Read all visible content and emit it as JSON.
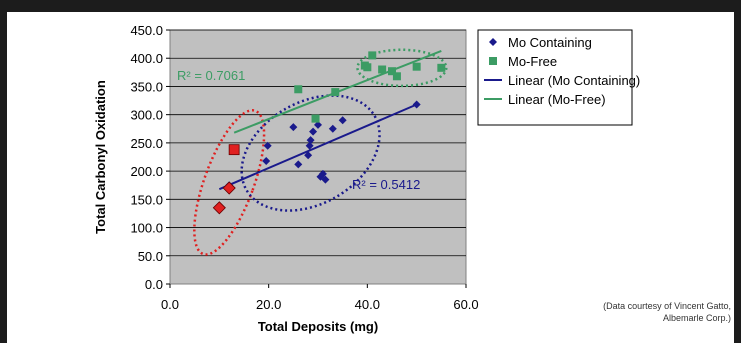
{
  "chart_data": {
    "type": "scatter",
    "xlabel": "Total Deposits (mg)",
    "ylabel": "Total Carbonyl Oxidation",
    "xlim": [
      0,
      60
    ],
    "ylim": [
      0,
      450
    ],
    "x_ticks": [
      "0.0",
      "20.0",
      "40.0",
      "60.0"
    ],
    "y_ticks": [
      "0.0",
      "50.0",
      "100.0",
      "150.0",
      "200.0",
      "250.0",
      "300.0",
      "350.0",
      "400.0",
      "450.0"
    ],
    "grid": true,
    "legend_position": "right",
    "series": [
      {
        "name": "Mo Containing",
        "marker": "diamond",
        "color": "#1a1a8c",
        "points": [
          [
            12,
            175
          ],
          [
            19.5,
            218
          ],
          [
            19.8,
            245
          ],
          [
            25,
            278
          ],
          [
            26,
            212
          ],
          [
            28,
            228
          ],
          [
            28.3,
            245
          ],
          [
            28.5,
            255
          ],
          [
            29,
            270
          ],
          [
            30,
            282
          ],
          [
            30.5,
            190
          ],
          [
            31,
            195
          ],
          [
            31.5,
            185
          ],
          [
            33,
            275
          ],
          [
            35,
            290
          ],
          [
            50,
            318
          ]
        ]
      },
      {
        "name": "Mo-Free",
        "marker": "square",
        "color": "#3c9c64",
        "points": [
          [
            26,
            345
          ],
          [
            29.5,
            293
          ],
          [
            33.5,
            340
          ],
          [
            39.5,
            387
          ],
          [
            40,
            384
          ],
          [
            41,
            405
          ],
          [
            43,
            380
          ],
          [
            45,
            377
          ],
          [
            46,
            368
          ],
          [
            50,
            385
          ],
          [
            55,
            383
          ]
        ]
      }
    ],
    "trendlines": [
      {
        "name": "Linear (Mo Containing)",
        "color": "#1a1a8c",
        "x": [
          10,
          50
        ],
        "y": [
          168,
          318
        ],
        "r2_label": "R² = 0.5412"
      },
      {
        "name": "Linear (Mo-Free)",
        "color": "#3c9c64",
        "x": [
          13,
          55
        ],
        "y": [
          268,
          413
        ],
        "r2_label": "R² = 0.7061"
      }
    ],
    "highlighted_points": [
      [
        10,
        135
      ],
      [
        12,
        170
      ],
      [
        13,
        238
      ]
    ],
    "highlight_color": "#e02020",
    "ellipse_colors": {
      "red": "#e02020",
      "blue": "#1a1a8c",
      "green": "#3c9c64"
    }
  },
  "credit": {
    "line1": "(Data courtesy of Vincent Gatto,",
    "line2": "Albemarle Corp.)"
  }
}
